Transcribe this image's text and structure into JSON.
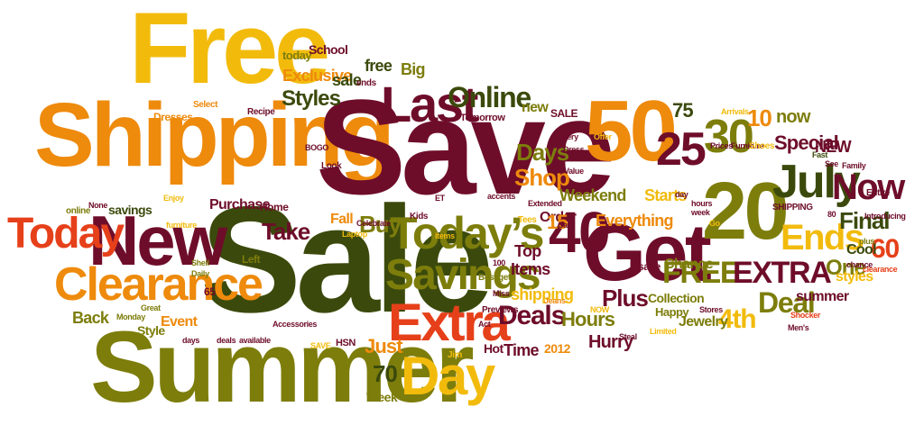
{
  "palette": {
    "orange": "#ee8a0c",
    "yellow": "#f2bb0c",
    "olive": "#7d7d0c",
    "darkgreen": "#3b4a0c",
    "maroon": "#6e0d2a",
    "red": "#e6401a"
  },
  "words": [
    {
      "text": "Free",
      "color": "yellow"
    },
    {
      "text": "Shipping",
      "color": "orange"
    },
    {
      "text": "Save",
      "color": "maroon"
    },
    {
      "text": "Sale",
      "color": "darkgreen"
    },
    {
      "text": "Summer",
      "color": "olive"
    },
    {
      "text": "New",
      "color": "maroon"
    },
    {
      "text": "Clearance",
      "color": "orange"
    },
    {
      "text": "Today",
      "color": "red"
    },
    {
      "text": "Get",
      "color": "maroon"
    },
    {
      "text": "Extra",
      "color": "red"
    },
    {
      "text": "Day",
      "color": "yellow"
    },
    {
      "text": "Today’s",
      "color": "olive"
    },
    {
      "text": "Savings",
      "color": "olive"
    },
    {
      "text": "Last",
      "color": "maroon"
    },
    {
      "text": "Online",
      "color": "darkgreen"
    },
    {
      "text": "50",
      "color": "orange"
    },
    {
      "text": "25",
      "color": "maroon"
    },
    {
      "text": "30",
      "color": "olive"
    },
    {
      "text": "20",
      "color": "olive"
    },
    {
      "text": "July",
      "color": "darkgreen"
    },
    {
      "text": "Now",
      "color": "maroon"
    },
    {
      "text": "40",
      "color": "maroon"
    },
    {
      "text": "FREE",
      "color": "olive"
    },
    {
      "text": "EXTRA",
      "color": "maroon"
    },
    {
      "text": "Ends",
      "color": "yellow"
    },
    {
      "text": "Deals",
      "color": "maroon"
    },
    {
      "text": "Plus",
      "color": "maroon"
    },
    {
      "text": "Deal",
      "color": "olive"
    },
    {
      "text": "4th",
      "color": "yellow"
    },
    {
      "text": "Everything",
      "color": "orange"
    },
    {
      "text": "Shop",
      "color": "orange"
    },
    {
      "text": "Days",
      "color": "olive"
    },
    {
      "text": "Take",
      "color": "maroon"
    },
    {
      "text": "Buy",
      "color": "olive"
    },
    {
      "text": "Fall",
      "color": "orange"
    },
    {
      "text": "Styles",
      "color": "darkgreen"
    },
    {
      "text": "Exclusive",
      "color": "orange"
    },
    {
      "text": "free",
      "color": "darkgreen"
    },
    {
      "text": "sale",
      "color": "darkgreen"
    },
    {
      "text": "Big",
      "color": "olive"
    },
    {
      "text": "today",
      "color": "olive"
    },
    {
      "text": "School",
      "color": "maroon"
    },
    {
      "text": "Purchase",
      "color": "maroon"
    },
    {
      "text": "Home",
      "color": "maroon"
    },
    {
      "text": "Back",
      "color": "olive"
    },
    {
      "text": "Event",
      "color": "orange"
    },
    {
      "text": "Style",
      "color": "olive"
    },
    {
      "text": "Just",
      "color": "orange"
    },
    {
      "text": "70",
      "color": "darkgreen"
    },
    {
      "text": "Week",
      "color": "olive"
    },
    {
      "text": "Hours",
      "color": "olive"
    },
    {
      "text": "Hurry",
      "color": "maroon"
    },
    {
      "text": "Time",
      "color": "maroon"
    },
    {
      "text": "Hot",
      "color": "maroon"
    },
    {
      "text": "2012",
      "color": "orange"
    },
    {
      "text": "One",
      "color": "olive"
    },
    {
      "text": "Final",
      "color": "darkgreen"
    },
    {
      "text": "60",
      "color": "red"
    },
    {
      "text": "Chance",
      "color": "olive"
    },
    {
      "text": "Collection",
      "color": "olive"
    },
    {
      "text": "Jewelry",
      "color": "olive"
    },
    {
      "text": "Happy",
      "color": "olive"
    },
    {
      "text": "Starts",
      "color": "yellow"
    },
    {
      "text": "Weekend",
      "color": "olive"
    },
    {
      "text": "Order",
      "color": "maroon"
    },
    {
      "text": "Items",
      "color": "maroon"
    },
    {
      "text": "Top",
      "color": "maroon"
    },
    {
      "text": "15",
      "color": "orange"
    },
    {
      "text": "shipping",
      "color": "yellow"
    },
    {
      "text": "Special",
      "color": "maroon"
    },
    {
      "text": "NEW",
      "color": "maroon"
    },
    {
      "text": "Cool",
      "color": "darkgreen"
    },
    {
      "text": "styles",
      "color": "yellow"
    },
    {
      "text": "summer",
      "color": "maroon"
    },
    {
      "text": "save",
      "color": "maroon"
    },
    {
      "text": "now",
      "color": "olive"
    },
    {
      "text": "10",
      "color": "orange"
    },
    {
      "text": "75",
      "color": "darkgreen"
    },
    {
      "text": "new",
      "color": "olive"
    },
    {
      "text": "SALE",
      "color": "maroon"
    },
    {
      "text": "Tomorrow",
      "color": "maroon"
    },
    {
      "text": "Dresses",
      "color": "orange"
    },
    {
      "text": "Select",
      "color": "orange"
    },
    {
      "text": "Recipe",
      "color": "maroon"
    },
    {
      "text": "online",
      "color": "olive"
    },
    {
      "text": "savings",
      "color": "darkgreen"
    },
    {
      "text": "Left",
      "color": "olive"
    },
    {
      "text": "65",
      "color": "maroon"
    },
    {
      "text": "Shell",
      "color": "olive"
    },
    {
      "text": "Daily",
      "color": "olive"
    },
    {
      "text": "Great",
      "color": "olive"
    },
    {
      "text": "Monday",
      "color": "olive"
    },
    {
      "text": "days",
      "color": "maroon"
    },
    {
      "text": "deals",
      "color": "maroon"
    },
    {
      "text": "available",
      "color": "maroon"
    },
    {
      "text": "Accessories",
      "color": "maroon"
    },
    {
      "text": "HSN",
      "color": "maroon"
    },
    {
      "text": "Jim",
      "color": "yellow"
    },
    {
      "text": "Previews",
      "color": "maroon"
    },
    {
      "text": "Act",
      "color": "maroon"
    },
    {
      "text": "Miss",
      "color": "maroon"
    },
    {
      "text": "Best",
      "color": "olive"
    },
    {
      "text": "get",
      "color": "olive"
    },
    {
      "text": "100",
      "color": "maroon"
    },
    {
      "text": "Kids",
      "color": "maroon"
    },
    {
      "text": "Jeans",
      "color": "orange"
    },
    {
      "text": "Tees",
      "color": "yellow"
    },
    {
      "text": "Value",
      "color": "maroon"
    },
    {
      "text": "Extended",
      "color": "maroon"
    },
    {
      "text": "Card",
      "color": "maroon"
    },
    {
      "text": "Stores",
      "color": "maroon"
    },
    {
      "text": "Prices",
      "color": "maroon"
    },
    {
      "text": "Furniture",
      "color": "maroon"
    },
    {
      "text": "Shoes",
      "color": "yellow"
    },
    {
      "text": "Fast",
      "color": "darkgreen"
    },
    {
      "text": "Family",
      "color": "maroon"
    },
    {
      "text": "Entire",
      "color": "maroon"
    },
    {
      "text": "SHIPPING",
      "color": "maroon"
    },
    {
      "text": "Introducing",
      "color": "maroon"
    },
    {
      "text": "plus",
      "color": "olive"
    },
    {
      "text": "clearance",
      "color": "red"
    },
    {
      "text": "Men's",
      "color": "maroon"
    },
    {
      "text": "Shocker",
      "color": "red"
    },
    {
      "text": "Steal",
      "color": "maroon"
    },
    {
      "text": "Limited",
      "color": "yellow"
    },
    {
      "text": "Arrivals",
      "color": "yellow"
    },
    {
      "text": "ends",
      "color": "maroon"
    },
    {
      "text": "Look",
      "color": "maroon"
    },
    {
      "text": "Enjoy",
      "color": "yellow"
    },
    {
      "text": "None",
      "color": "maroon"
    },
    {
      "text": "Celebrate",
      "color": "maroon"
    },
    {
      "text": "Laptop",
      "color": "yellow"
    },
    {
      "text": "furniture",
      "color": "yellow"
    },
    {
      "text": "SAVE",
      "color": "yellow"
    },
    {
      "text": "Offer",
      "color": "yellow"
    },
    {
      "text": "Dress",
      "color": "maroon"
    },
    {
      "text": "Every",
      "color": "maroon"
    },
    {
      "text": "week",
      "color": "maroon"
    },
    {
      "text": "hours",
      "color": "maroon"
    },
    {
      "text": "day",
      "color": "maroon"
    },
    {
      "text": "See",
      "color": "maroon"
    },
    {
      "text": "Go",
      "color": "yellow"
    },
    {
      "text": "chance",
      "color": "maroon"
    },
    {
      "text": "80",
      "color": "maroon"
    },
    {
      "text": "ET",
      "color": "maroon"
    },
    {
      "text": "accents",
      "color": "maroon"
    },
    {
      "text": "items",
      "color": "yellow"
    },
    {
      "text": "BOGO",
      "color": "maroon"
    },
    {
      "text": "NOW",
      "color": "yellow"
    }
  ]
}
